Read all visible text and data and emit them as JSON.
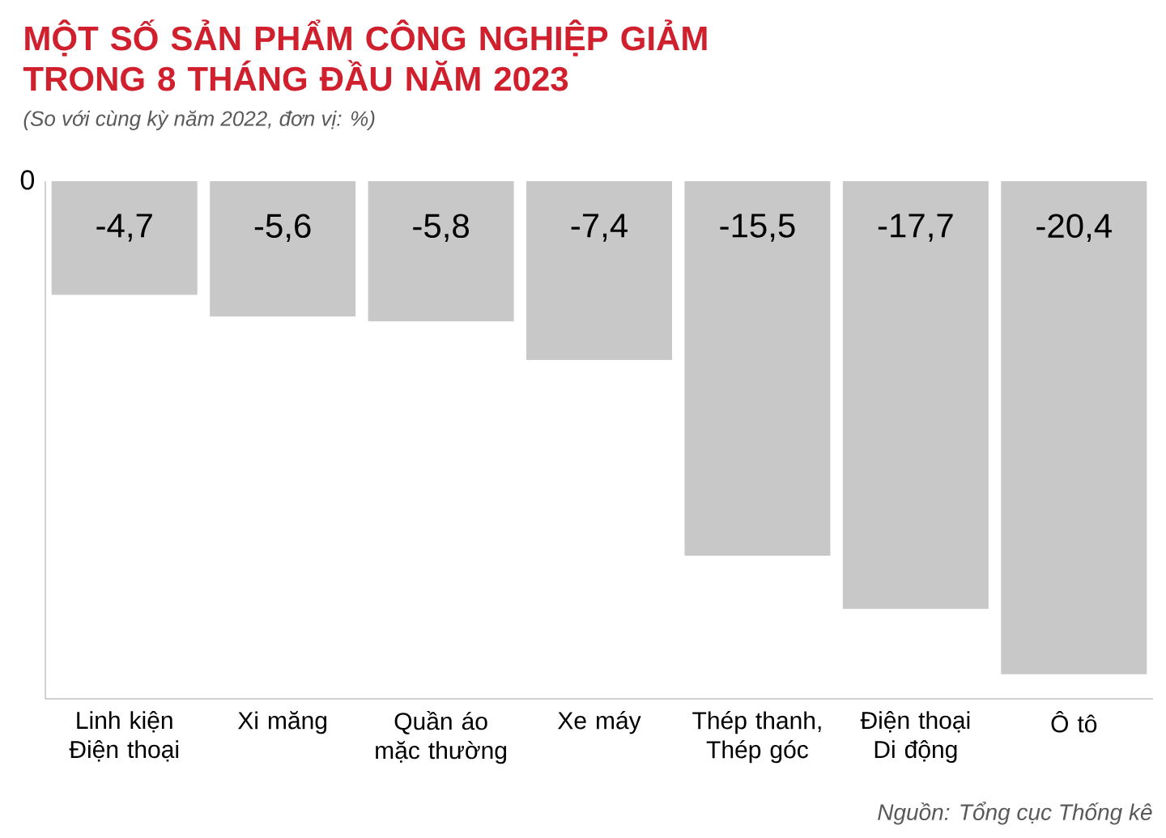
{
  "chart_data": {
    "type": "bar",
    "title": "MỘT SỐ SẢN PHẨM CÔNG NGHIỆP GIẢM TRONG 8 THÁNG ĐẦU NĂM 2023",
    "subtitle": "(So với cùng kỳ năm 2022, đơn vị: %)",
    "categories": [
      "Linh kiện Điện thoại",
      "Xi măng",
      "Quần áo mặc thường",
      "Xe máy",
      "Thép thanh, Thép góc",
      "Điện thoại Di động",
      "Ô tô"
    ],
    "values": [
      -4.7,
      -5.6,
      -5.8,
      -7.4,
      -15.5,
      -17.7,
      -20.4
    ],
    "value_labels": [
      "-4,7",
      "-5,6",
      "-5,8",
      "-7,4",
      "-15,5",
      "-17,7",
      "-20,4"
    ],
    "color": "#c8c8c8",
    "annotations": [
      "0",
      "Nguồn: Tổng cục Thống kê"
    ]
  }
}
